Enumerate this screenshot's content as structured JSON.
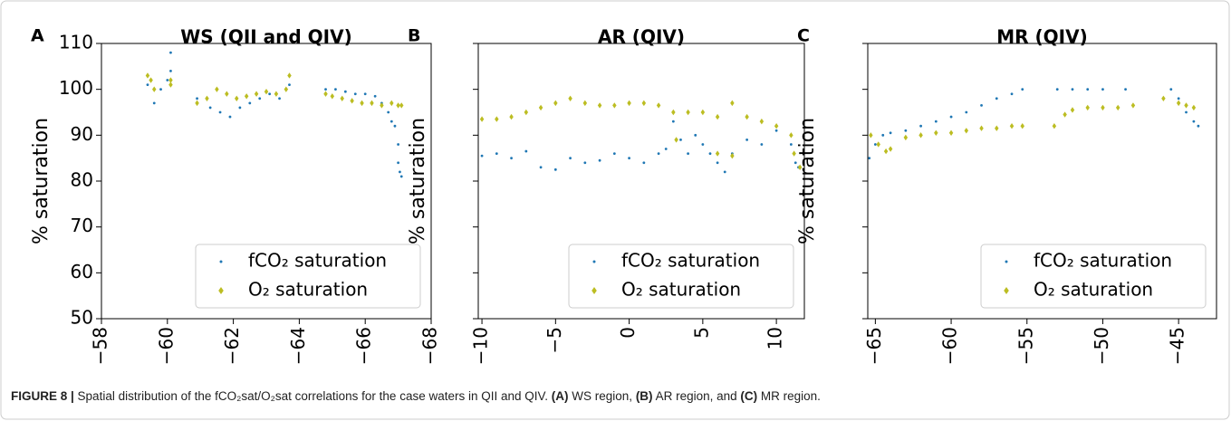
{
  "chart_data": [
    {
      "type": "scatter",
      "panel_label": "A",
      "title": "WS (QII and QIV)",
      "ylabel": "% saturation",
      "xlim": [
        -58,
        -68
      ],
      "xticks": [
        {
          "value": -58,
          "label": "−58"
        },
        {
          "value": -60,
          "label": "−60"
        },
        {
          "value": -62,
          "label": "−62"
        },
        {
          "value": -64,
          "label": "−64"
        },
        {
          "value": -66,
          "label": "−66"
        },
        {
          "value": -68,
          "label": "−68"
        }
      ],
      "ylim": [
        50,
        110
      ],
      "yticks": [
        50,
        60,
        70,
        80,
        90,
        100,
        110
      ],
      "show_ytick_labels": true,
      "legend": "lower right",
      "series": [
        {
          "name": "fCO₂ saturation",
          "color": "#1f77b4",
          "marker": "dot",
          "x": [
            -59.4,
            -59.6,
            -59.8,
            -60.0,
            -60.1,
            -60.1,
            -60.9,
            -61.3,
            -61.6,
            -61.9,
            -62.2,
            -62.5,
            -62.8,
            -63.1,
            -63.4,
            -63.7,
            -64.8,
            -65.1,
            -65.4,
            -65.7,
            -66.0,
            -66.3,
            -66.5,
            -66.7,
            -66.8,
            -66.9,
            -67.0,
            -67.0,
            -67.05,
            -67.1
          ],
          "values": [
            101,
            97,
            100,
            102,
            108,
            104,
            98,
            96,
            95,
            94,
            96,
            97,
            98,
            99,
            98,
            101,
            100,
            100,
            99.5,
            99,
            99,
            98.5,
            97,
            95,
            93,
            92,
            88,
            84,
            82,
            81
          ]
        },
        {
          "name": "O₂ saturation",
          "color": "#bcbd22",
          "marker": "diamond",
          "x": [
            -59.4,
            -59.5,
            -59.6,
            -60.1,
            -60.1,
            -60.9,
            -61.2,
            -61.5,
            -61.8,
            -62.1,
            -62.4,
            -62.7,
            -63.0,
            -63.3,
            -63.6,
            -63.7,
            -64.8,
            -65.0,
            -65.3,
            -65.6,
            -65.9,
            -66.2,
            -66.5,
            -66.8,
            -67.0,
            -67.1
          ],
          "values": [
            103,
            102,
            100,
            101,
            102,
            97,
            98,
            100,
            99,
            98,
            98.5,
            99,
            99.5,
            99,
            100,
            103,
            99,
            98.5,
            98,
            97.5,
            97,
            97,
            96.5,
            97,
            96.5,
            96.5
          ]
        }
      ]
    },
    {
      "type": "scatter",
      "panel_label": "B",
      "title": "AR (QIV)",
      "ylabel": "% saturation",
      "xlim": [
        -10.25,
        11.9
      ],
      "xticks": [
        {
          "value": -10,
          "label": "−10"
        },
        {
          "value": -5,
          "label": "−5"
        },
        0,
        5,
        10
      ],
      "ylim": [
        50,
        110
      ],
      "yticks": [
        50,
        60,
        70,
        80,
        90,
        100,
        110
      ],
      "show_ytick_labels": false,
      "legend": "lower right",
      "series": [
        {
          "name": "fCO₂ saturation",
          "color": "#1f77b4",
          "marker": "dot",
          "x": [
            -10,
            -9,
            -8,
            -7,
            -6,
            -5,
            -4,
            -3,
            -2,
            -1,
            0,
            1,
            2,
            2.5,
            3,
            3.5,
            4,
            4.5,
            5,
            5.5,
            6,
            6.5,
            7,
            8,
            9,
            10,
            11,
            11.3,
            11.5
          ],
          "values": [
            85.5,
            86,
            85,
            86.5,
            83,
            82.5,
            85,
            84,
            84.5,
            86,
            85,
            84,
            86,
            87,
            93,
            89,
            86,
            90,
            88,
            86,
            84,
            82,
            86,
            89,
            88,
            91,
            88,
            84,
            83
          ]
        },
        {
          "name": "O₂ saturation",
          "color": "#bcbd22",
          "marker": "diamond",
          "x": [
            -10,
            -9,
            -8,
            -7,
            -6,
            -5,
            -4,
            -3,
            -2,
            -1,
            0,
            1,
            2,
            3,
            3.2,
            4,
            5,
            6,
            6,
            7,
            7,
            8,
            9,
            10,
            11,
            11.2,
            11.6
          ],
          "values": [
            93.5,
            93.5,
            94,
            95,
            96,
            97,
            98,
            97,
            96.5,
            96.5,
            97,
            97,
            96.5,
            95,
            89,
            95,
            95,
            94,
            86,
            85.5,
            97,
            94,
            93,
            92,
            90,
            86,
            83
          ]
        }
      ]
    },
    {
      "type": "scatter",
      "panel_label": "C",
      "title": "MR (QIV)",
      "ylabel": "% saturation",
      "xlim": [
        -65.5,
        -42.5
      ],
      "xticks": [
        {
          "value": -65,
          "label": "−65"
        },
        {
          "value": -60,
          "label": "−60"
        },
        {
          "value": -55,
          "label": "−55"
        },
        {
          "value": -50,
          "label": "−50"
        },
        {
          "value": -45,
          "label": "−45"
        }
      ],
      "ylim": [
        50,
        110
      ],
      "yticks": [
        50,
        60,
        70,
        80,
        90,
        100,
        110
      ],
      "show_ytick_labels": false,
      "legend": "lower right",
      "series": [
        {
          "name": "fCO₂ saturation",
          "color": "#1f77b4",
          "marker": "dot",
          "x": [
            -65.4,
            -65,
            -64.5,
            -64,
            -63,
            -62,
            -61,
            -60,
            -59,
            -58,
            -57,
            -56,
            -55.3,
            -53,
            -52,
            -51,
            -50,
            -48.5,
            -45.5,
            -45,
            -44.5,
            -44,
            -43.7
          ],
          "values": [
            85,
            88,
            90,
            90.5,
            91,
            92,
            93,
            94,
            95,
            96.5,
            98,
            99,
            100,
            100,
            100,
            100,
            100,
            100,
            100,
            98,
            95,
            93,
            92
          ]
        },
        {
          "name": "O₂ saturation",
          "color": "#bcbd22",
          "marker": "diamond",
          "x": [
            -65.3,
            -64.8,
            -64.3,
            -64,
            -63,
            -62,
            -61,
            -60,
            -59,
            -58,
            -57,
            -56,
            -55.3,
            -53.2,
            -52.5,
            -52,
            -51,
            -50,
            -49,
            -48,
            -46,
            -45,
            -44.5,
            -44
          ],
          "values": [
            90,
            88,
            86.5,
            87,
            89.5,
            90,
            90.5,
            90.5,
            91,
            91.5,
            91.5,
            92,
            92,
            92,
            94.5,
            95.5,
            96,
            96,
            96,
            96.5,
            98,
            97,
            96.5,
            96
          ]
        }
      ]
    }
  ],
  "caption": [
    {
      "text": "FIGURE 8 |",
      "bold": true
    },
    {
      "text": " Spatial distribution of the fCO₂sat/O₂sat correlations for the case waters in QII and QIV. ",
      "bold": false
    },
    {
      "text": "(A)",
      "bold": true
    },
    {
      "text": " WS region, ",
      "bold": false
    },
    {
      "text": "(B)",
      "bold": true
    },
    {
      "text": " AR region, and ",
      "bold": false
    },
    {
      "text": "(C)",
      "bold": true
    },
    {
      "text": " MR region.",
      "bold": false
    }
  ]
}
